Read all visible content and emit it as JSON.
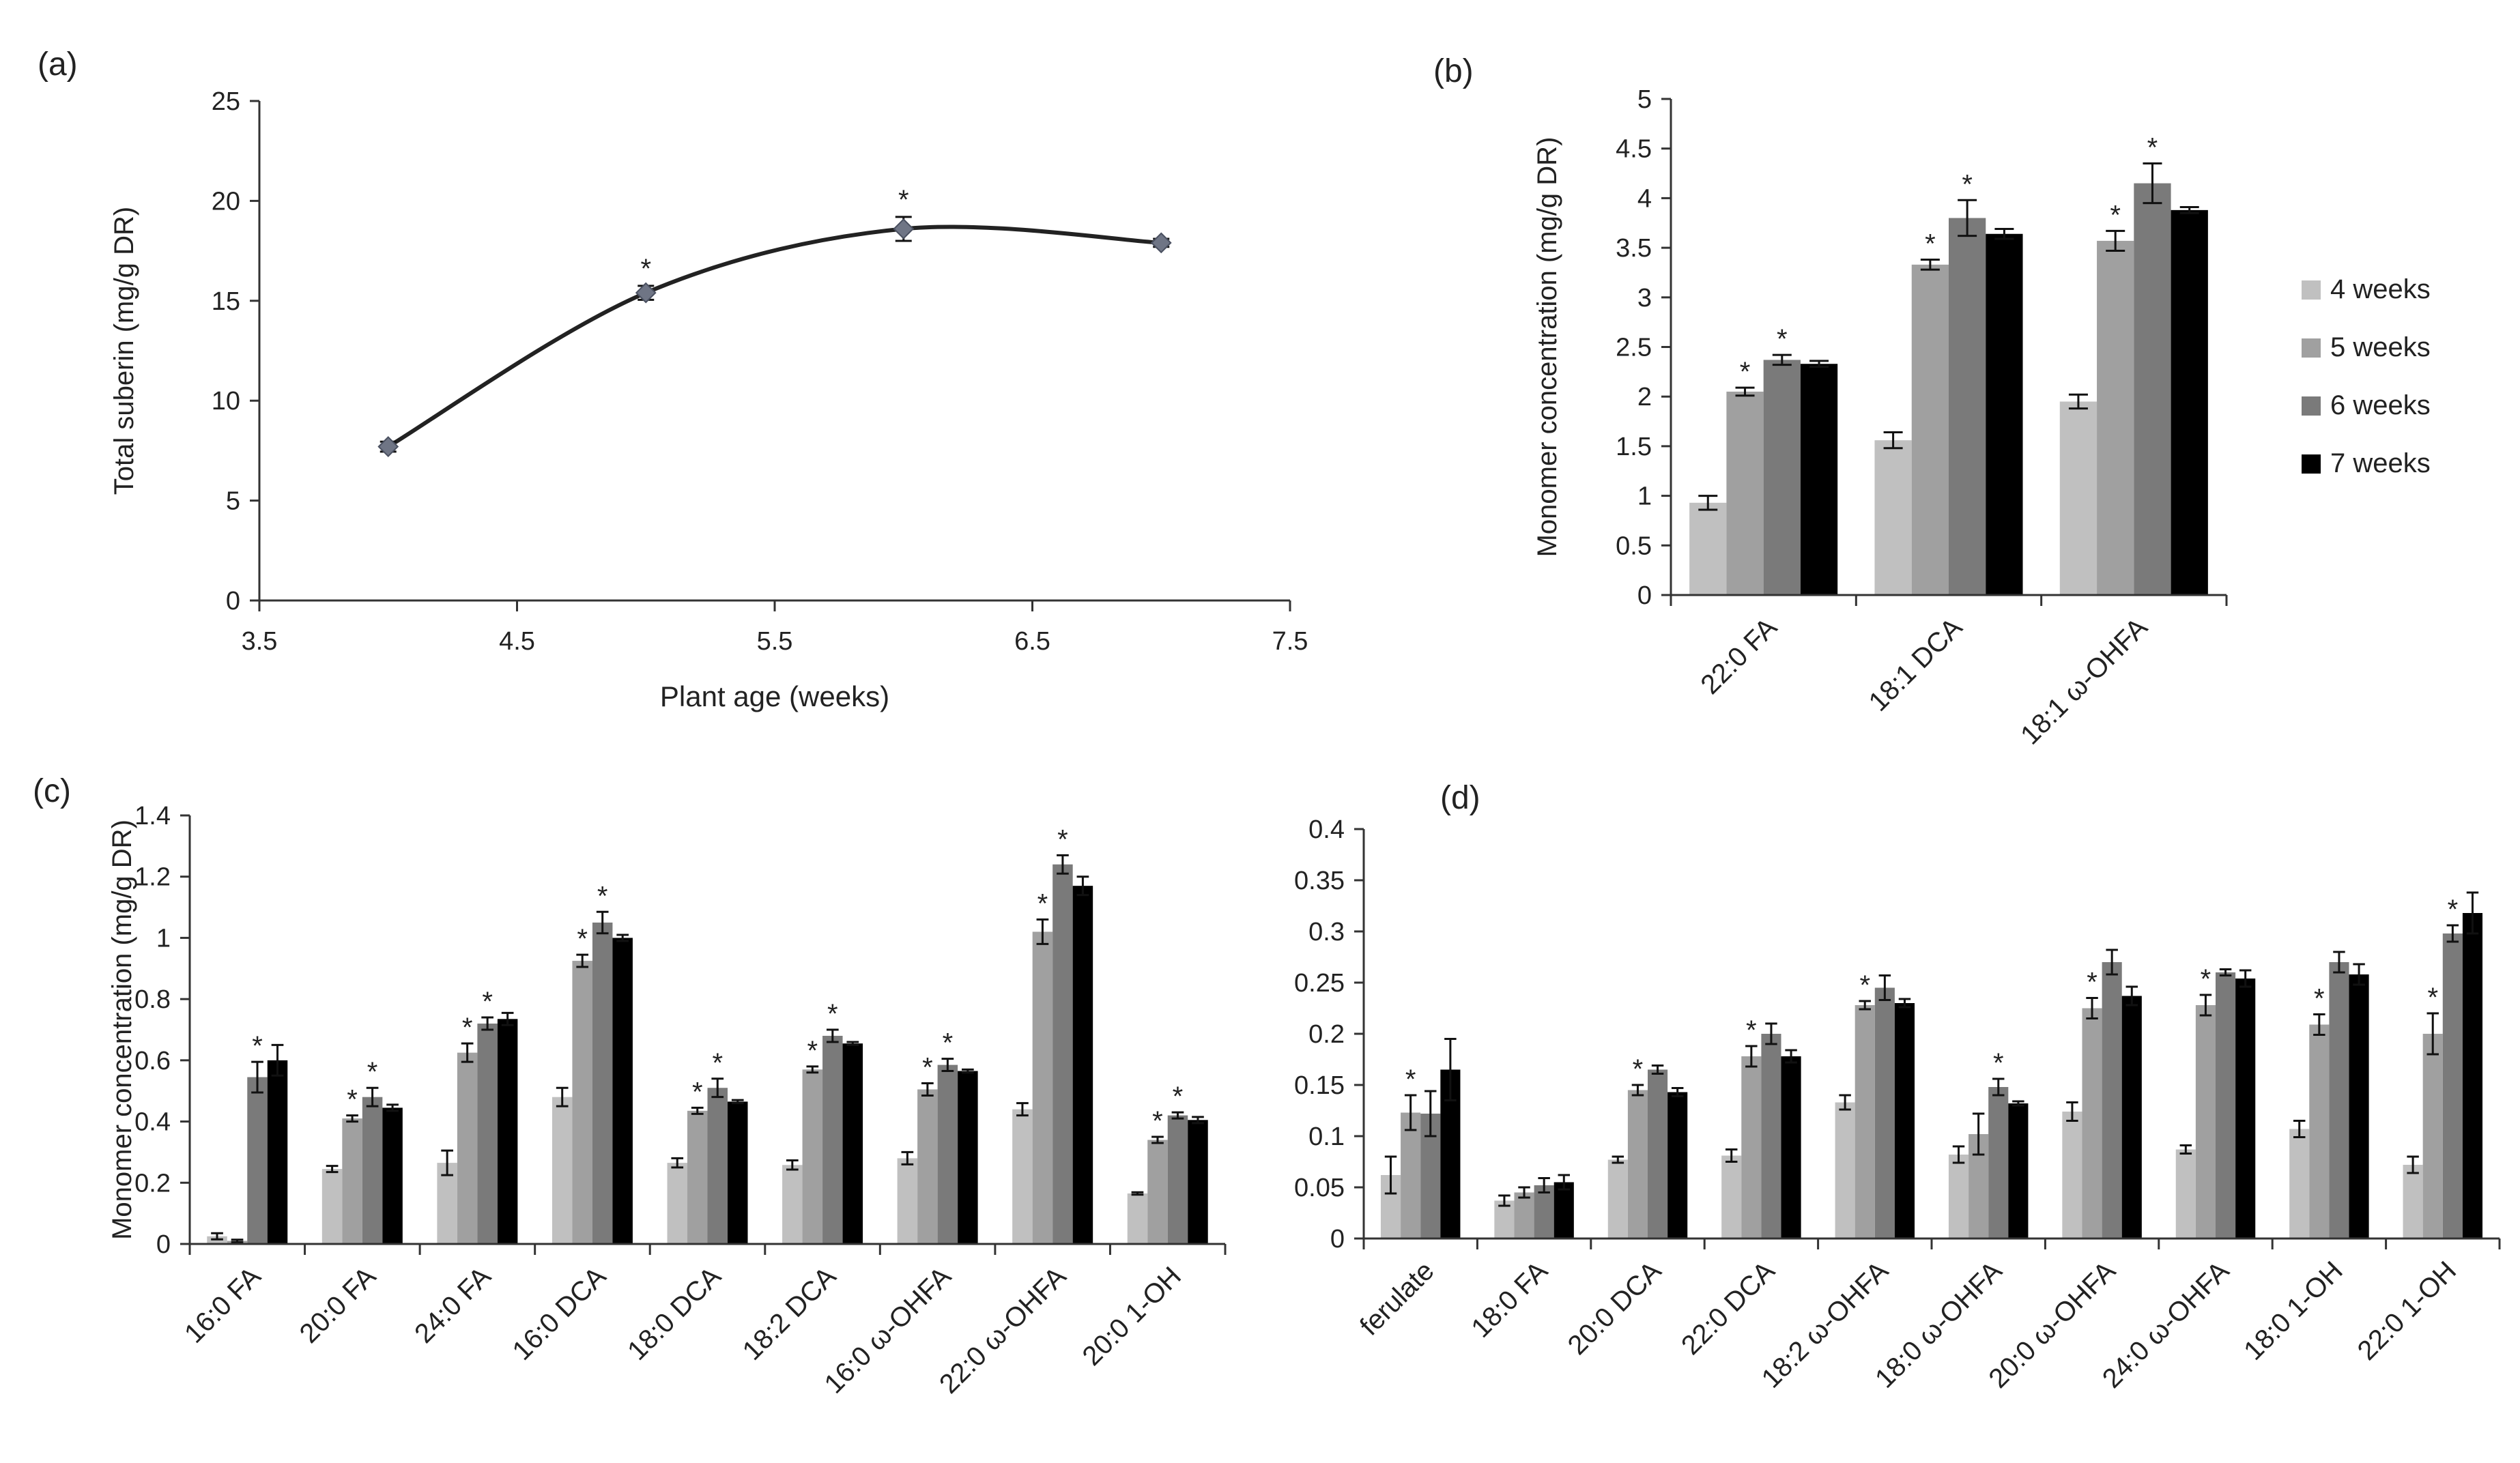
{
  "chart_data": [
    {
      "panel": "(a)",
      "type": "line",
      "title": "",
      "xlabel": "Plant age (weeks)",
      "ylabel": "Total suberin (mg/g DR)",
      "xlim": [
        3.5,
        7.5
      ],
      "ylim": [
        0,
        25
      ],
      "xticks": [
        "3.5",
        "4.5",
        "5.5",
        "6.5",
        "7.5"
      ],
      "yticks": [
        "0",
        "5",
        "10",
        "15",
        "20",
        "25"
      ],
      "grid": false,
      "smooth": true,
      "points": [
        {
          "x": 4,
          "y": 7.7,
          "err": 0.25,
          "sig": ""
        },
        {
          "x": 5,
          "y": 15.4,
          "err": 0.35,
          "sig": "*"
        },
        {
          "x": 6,
          "y": 18.6,
          "err": 0.6,
          "sig": "*"
        },
        {
          "x": 7,
          "y": 17.9,
          "err": 0.2,
          "sig": ""
        }
      ],
      "color": "#222222",
      "marker_color": "#6f7585"
    },
    {
      "panel": "(b)",
      "type": "bar",
      "title": "",
      "xlabel": "",
      "ylabel": "Monomer concentration (mg/g DR)",
      "ylim": [
        0,
        5
      ],
      "yticks": [
        "0",
        "0.5",
        "1",
        "1.5",
        "2",
        "2.5",
        "3",
        "3.5",
        "4",
        "4.5",
        "5"
      ],
      "grid": false,
      "legend": "right",
      "categories": [
        "22:0 FA",
        "18:1 DCA",
        "18:1 ω-OHFA"
      ],
      "series": [
        {
          "name": "4 weeks",
          "color": "#c0c0c0",
          "values": [
            0.93,
            1.56,
            1.95
          ],
          "errors": [
            0.07,
            0.08,
            0.07
          ],
          "sig": [
            "",
            "",
            ""
          ]
        },
        {
          "name": "5 weeks",
          "color": "#a0a0a0",
          "values": [
            2.05,
            3.33,
            3.57
          ],
          "errors": [
            0.04,
            0.05,
            0.1
          ],
          "sig": [
            "*",
            "*",
            "*"
          ]
        },
        {
          "name": "6 weeks",
          "color": "#7a7a7a",
          "values": [
            2.37,
            3.8,
            4.15
          ],
          "errors": [
            0.05,
            0.18,
            0.2
          ],
          "sig": [
            "*",
            "*",
            "*"
          ]
        },
        {
          "name": "7 weeks",
          "color": "#000000",
          "values": [
            2.33,
            3.64,
            3.88
          ],
          "errors": [
            0.03,
            0.05,
            0.03
          ],
          "sig": [
            "",
            "",
            ""
          ]
        }
      ]
    },
    {
      "panel": "(c)",
      "type": "bar",
      "title": "",
      "xlabel": "",
      "ylabel": "Monomer concentration (mg/g DR)",
      "ylim": [
        0,
        1.4
      ],
      "yticks": [
        "0",
        "0.2",
        "0.4",
        "0.6",
        "0.8",
        "1",
        "1.2",
        "1.4"
      ],
      "grid": false,
      "categories": [
        "16:0 FA",
        "20:0 FA",
        "24:0 FA",
        "16:0 DCA",
        "18:0 DCA",
        "18:2 DCA",
        "16:0 ω-OHFA",
        "22:0 ω-OHFA",
        "20:0 1-OH"
      ],
      "series": [
        {
          "name": "4 weeks",
          "color": "#c0c0c0",
          "values": [
            0.025,
            0.245,
            0.265,
            0.48,
            0.265,
            0.258,
            0.28,
            0.44,
            0.165
          ],
          "errors": [
            0.01,
            0.01,
            0.04,
            0.03,
            0.015,
            0.015,
            0.02,
            0.02,
            0.004
          ],
          "sig": [
            "",
            "",
            "",
            "",
            "",
            "",
            "",
            "",
            ""
          ]
        },
        {
          "name": "5 weeks",
          "color": "#a0a0a0",
          "values": [
            0.01,
            0.41,
            0.625,
            0.925,
            0.435,
            0.57,
            0.505,
            1.02,
            0.34
          ],
          "errors": [
            0.004,
            0.01,
            0.03,
            0.02,
            0.01,
            0.01,
            0.02,
            0.04,
            0.01
          ],
          "sig": [
            "",
            "*",
            "*",
            "*",
            "*",
            "*",
            "*",
            "*",
            "*"
          ]
        },
        {
          "name": "6 weeks",
          "color": "#7a7a7a",
          "values": [
            0.545,
            0.48,
            0.72,
            1.05,
            0.51,
            0.68,
            0.585,
            1.24,
            0.42
          ],
          "errors": [
            0.05,
            0.03,
            0.02,
            0.035,
            0.03,
            0.02,
            0.02,
            0.03,
            0.01
          ],
          "sig": [
            "*",
            "*",
            "*",
            "*",
            "*",
            "*",
            "*",
            "*",
            "*"
          ]
        },
        {
          "name": "7 weeks",
          "color": "#000000",
          "values": [
            0.6,
            0.445,
            0.735,
            1.0,
            0.465,
            0.655,
            0.565,
            1.17,
            0.405
          ],
          "errors": [
            0.05,
            0.01,
            0.02,
            0.01,
            0.005,
            0.005,
            0.005,
            0.03,
            0.01
          ],
          "sig": [
            "",
            "",
            "",
            "",
            "",
            "",
            "",
            "",
            ""
          ]
        }
      ]
    },
    {
      "panel": "(d)",
      "type": "bar",
      "title": "",
      "xlabel": "",
      "ylabel": "",
      "ylim": [
        0,
        0.4
      ],
      "yticks": [
        "0",
        "0.05",
        "0.1",
        "0.15",
        "0.2",
        "0.25",
        "0.3",
        "0.35",
        "0.4"
      ],
      "grid": false,
      "categories": [
        "ferulate",
        "18:0 FA",
        "20:0 DCA",
        "22:0 DCA",
        "18:2 ω-OHFA",
        "18:0 ω-OHFA",
        "20:0 ω-OHFA",
        "24:0 ω-OHFA",
        "18:0 1-OH",
        "22:0 1-OH"
      ],
      "series": [
        {
          "name": "4 weeks",
          "color": "#c0c0c0",
          "values": [
            0.062,
            0.037,
            0.077,
            0.081,
            0.133,
            0.082,
            0.124,
            0.087,
            0.107,
            0.072
          ],
          "errors": [
            0.018,
            0.005,
            0.003,
            0.006,
            0.007,
            0.008,
            0.009,
            0.004,
            0.008,
            0.008
          ],
          "sig": [
            "",
            "",
            "",
            "",
            "",
            "",
            "",
            "",
            "",
            ""
          ]
        },
        {
          "name": "5 weeks",
          "color": "#a0a0a0",
          "values": [
            0.123,
            0.045,
            0.145,
            0.178,
            0.228,
            0.102,
            0.225,
            0.228,
            0.209,
            0.2
          ],
          "errors": [
            0.017,
            0.005,
            0.005,
            0.01,
            0.004,
            0.02,
            0.01,
            0.01,
            0.01,
            0.02
          ],
          "sig": [
            "*",
            "",
            "*",
            "*",
            "*",
            "",
            "*",
            "*",
            "*",
            "*"
          ]
        },
        {
          "name": "6 weeks",
          "color": "#7a7a7a",
          "values": [
            0.122,
            0.052,
            0.165,
            0.2,
            0.245,
            0.148,
            0.27,
            0.26,
            0.27,
            0.298
          ],
          "errors": [
            0.022,
            0.007,
            0.004,
            0.01,
            0.012,
            0.008,
            0.012,
            0.003,
            0.01,
            0.008
          ],
          "sig": [
            "",
            "",
            "",
            "",
            "",
            "*",
            "",
            "",
            "",
            "*"
          ]
        },
        {
          "name": "7 weeks",
          "color": "#000000",
          "values": [
            0.165,
            0.055,
            0.143,
            0.178,
            0.23,
            0.132,
            0.237,
            0.254,
            0.258,
            0.318
          ],
          "errors": [
            0.03,
            0.007,
            0.004,
            0.006,
            0.004,
            0.002,
            0.009,
            0.008,
            0.01,
            0.02
          ],
          "sig": [
            "",
            "",
            "",
            "",
            "",
            "",
            "",
            "",
            "",
            ""
          ]
        }
      ]
    }
  ]
}
